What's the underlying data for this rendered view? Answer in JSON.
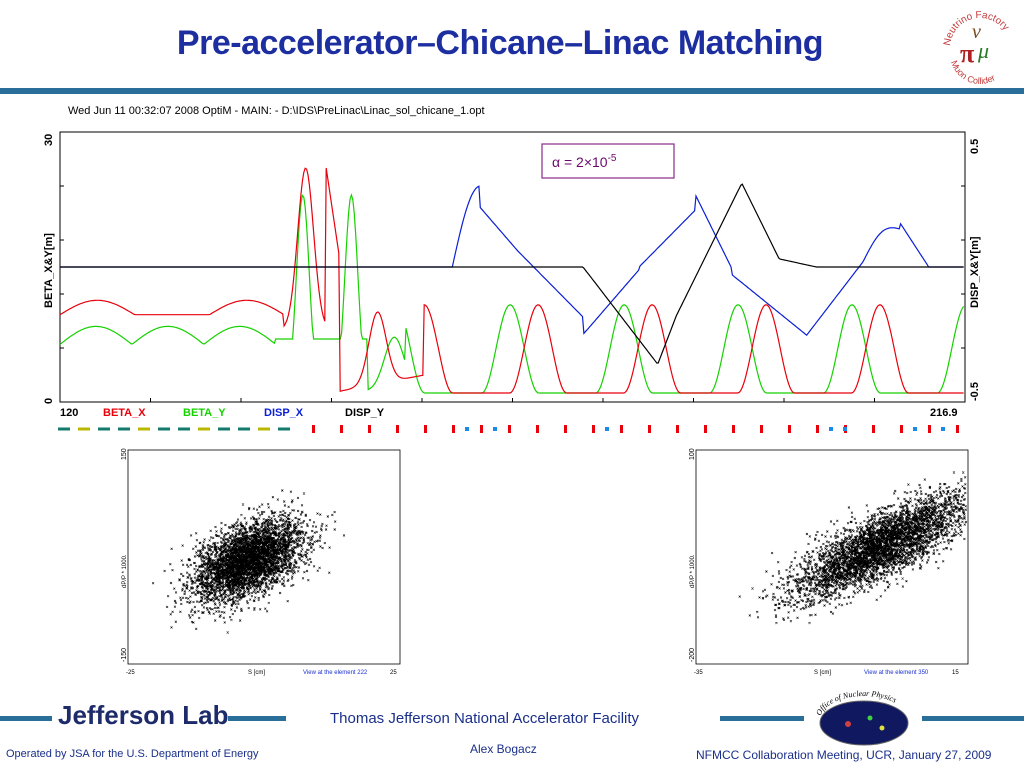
{
  "slide": {
    "title": "Pre-accelerator–Chicane–Linac Matching",
    "logo_text": [
      "Neutrino Factory",
      "Muon Collider"
    ],
    "logo_letters": [
      "π",
      "μ",
      "ν"
    ],
    "facility": "Thomas Jefferson National Accelerator Facility",
    "operated": "Operated by JSA for the U.S. Department of Energy",
    "author": "Alex Bogacz",
    "meeting": "NFMCC Collaboration Meeting, UCR, January 27, 2009",
    "jlab_logo": "Jefferson Lab",
    "seal_text": "Office of Nuclear Physics",
    "colors": {
      "title": "#1d2fa0",
      "bar": "#2a6f9a",
      "footer_text": "#1a2f8a"
    }
  },
  "optim_plot": {
    "header": "Wed Jun 11 00:32:07 2008    OptiM - MAIN: - D:\\IDS\\PreLinac\\Linac_sol_chicane_1.opt",
    "left_axis_label": "BETA_X&Y[m]",
    "right_axis_label": "DISP_X&Y[m]",
    "left_top": "30",
    "left_bottom": "0",
    "right_top": "0.5",
    "right_bottom": "-0.5",
    "x_start": "120",
    "x_end": "216.9",
    "legend": [
      {
        "label": "BETA_X",
        "color": "#e8000b"
      },
      {
        "label": "BETA_Y",
        "color": "#16d100"
      },
      {
        "label": "DISP_X",
        "color": "#0a1fd6"
      },
      {
        "label": "DISP_Y",
        "color": "#000000"
      }
    ],
    "annotation": "α = 2×10",
    "annotation_exp": "-5"
  },
  "chart_data": [
    {
      "type": "line",
      "x_range": [
        120,
        216.9
      ],
      "ylim_left": [
        0,
        30
      ],
      "ylim_right": [
        -0.5,
        0.5
      ],
      "series": [
        {
          "name": "BETA_X",
          "axis": "left",
          "color": "#e8000b"
        },
        {
          "name": "BETA_Y",
          "axis": "left",
          "color": "#16d100"
        },
        {
          "name": "DISP_X",
          "axis": "right",
          "color": "#0a1fd6"
        },
        {
          "name": "DISP_Y",
          "axis": "right",
          "color": "#000000"
        }
      ]
    },
    {
      "type": "scatter",
      "xlim": [
        -25,
        25
      ],
      "ylim": [
        -150,
        150
      ],
      "xlabel": "S [cm]",
      "ylabel": "dP/P * 1000.",
      "x_ticks": [
        "-25",
        "25"
      ],
      "y_ticks": [
        "150",
        "-150"
      ],
      "footer": "View at the element 222"
    },
    {
      "type": "scatter",
      "xlim": [
        -35,
        15
      ],
      "ylim": [
        -200,
        100
      ],
      "xlabel": "S [cm]",
      "ylabel": "dP/P * 1000.",
      "x_ticks": [
        "-35",
        "15"
      ],
      "y_ticks": [
        "100",
        "-200"
      ],
      "footer": "View at the element 350"
    }
  ]
}
